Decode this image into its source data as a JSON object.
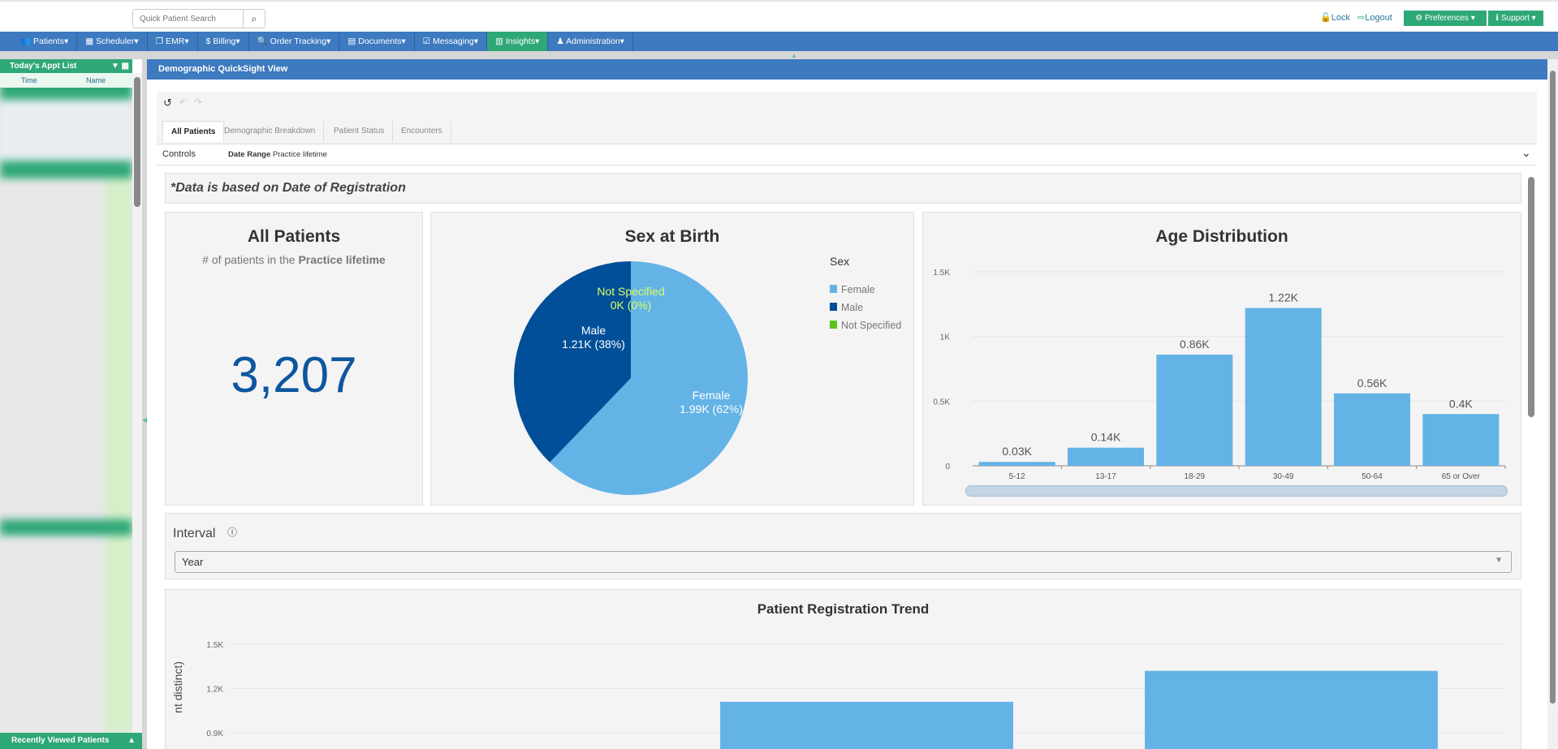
{
  "topbar": {
    "search_placeholder": "Quick Patient Search",
    "lock": "Lock",
    "logout": "Logout",
    "preferences": "Preferences",
    "support": "Support"
  },
  "nav": [
    {
      "label": "Patients",
      "icon": "users-icon",
      "glyph": "👥"
    },
    {
      "label": "Scheduler",
      "icon": "calendar-icon",
      "glyph": "▦"
    },
    {
      "label": "EMR",
      "icon": "files-icon",
      "glyph": "❐"
    },
    {
      "label": "Billing",
      "icon": "dollar-icon",
      "glyph": "$"
    },
    {
      "label": "Order Tracking",
      "icon": "search-icon",
      "glyph": "🔍"
    },
    {
      "label": "Documents",
      "icon": "document-icon",
      "glyph": "▤"
    },
    {
      "label": "Messaging",
      "icon": "checkbox-icon",
      "glyph": "☑"
    },
    {
      "label": "Insights",
      "icon": "bar-chart-icon",
      "glyph": "▥",
      "active": true
    },
    {
      "label": "Administration",
      "icon": "user-icon",
      "glyph": "♟"
    }
  ],
  "sidebar": {
    "title": "Today's Appt List",
    "col_time": "Time",
    "col_name": "Name",
    "footer": "Recently Viewed Patients"
  },
  "main": {
    "title": "Demographic QuickSight View",
    "tabs": [
      "All Patients",
      "Demographic Breakdown",
      "Patient Status",
      "Encounters"
    ],
    "controls_label": "Controls",
    "date_range_label": "Date Range",
    "date_range_value": "Practice lifetime",
    "notice": "*Data is based on Date of Registration"
  },
  "kpi": {
    "title": "All Patients",
    "subtitle_prefix": "# of patients in the ",
    "subtitle_bold": "Practice lifetime",
    "value": "3,207"
  },
  "interval": {
    "label": "Interval",
    "value": "Year"
  },
  "colors": {
    "nav": "#3d7abf",
    "green": "#2fa877",
    "female": "#64b3e6",
    "male": "#004f98",
    "not_specified": "#5cc21b"
  },
  "chart_data": [
    {
      "type": "pie",
      "title": "Sex at Birth",
      "legend_title": "Sex",
      "legend_placement": "right",
      "slices": [
        {
          "name": "Female",
          "value": 1.99,
          "label": "1.99K (62%)",
          "percent": 62
        },
        {
          "name": "Male",
          "value": 1.21,
          "label": "1.21K (38%)",
          "percent": 38
        },
        {
          "name": "Not Specified",
          "value": 0,
          "label": "0K (0%)",
          "percent": 0
        }
      ]
    },
    {
      "type": "bar",
      "title": "Age Distribution",
      "categories": [
        "5-12",
        "13-17",
        "18-29",
        "30-49",
        "50-64",
        "65 or Over"
      ],
      "values": [
        0.03,
        0.14,
        0.86,
        1.22,
        0.56,
        0.4
      ],
      "data_labels": [
        "0.03K",
        "0.14K",
        "0.86K",
        "1.22K",
        "0.56K",
        "0.4K"
      ],
      "yticks": [
        "0",
        "0.5K",
        "1K",
        "1.5K"
      ],
      "ylim": [
        0,
        1.5
      ],
      "grid": true
    },
    {
      "type": "bar",
      "title": "Patient Registration Trend",
      "ylabel": "nt distinct)",
      "values": [
        null,
        1.11,
        1.32
      ],
      "yticks": [
        "0.9K",
        "1.2K",
        "1.5K"
      ],
      "ytick_values": [
        0.9,
        1.2,
        1.5
      ],
      "grid": true
    }
  ]
}
